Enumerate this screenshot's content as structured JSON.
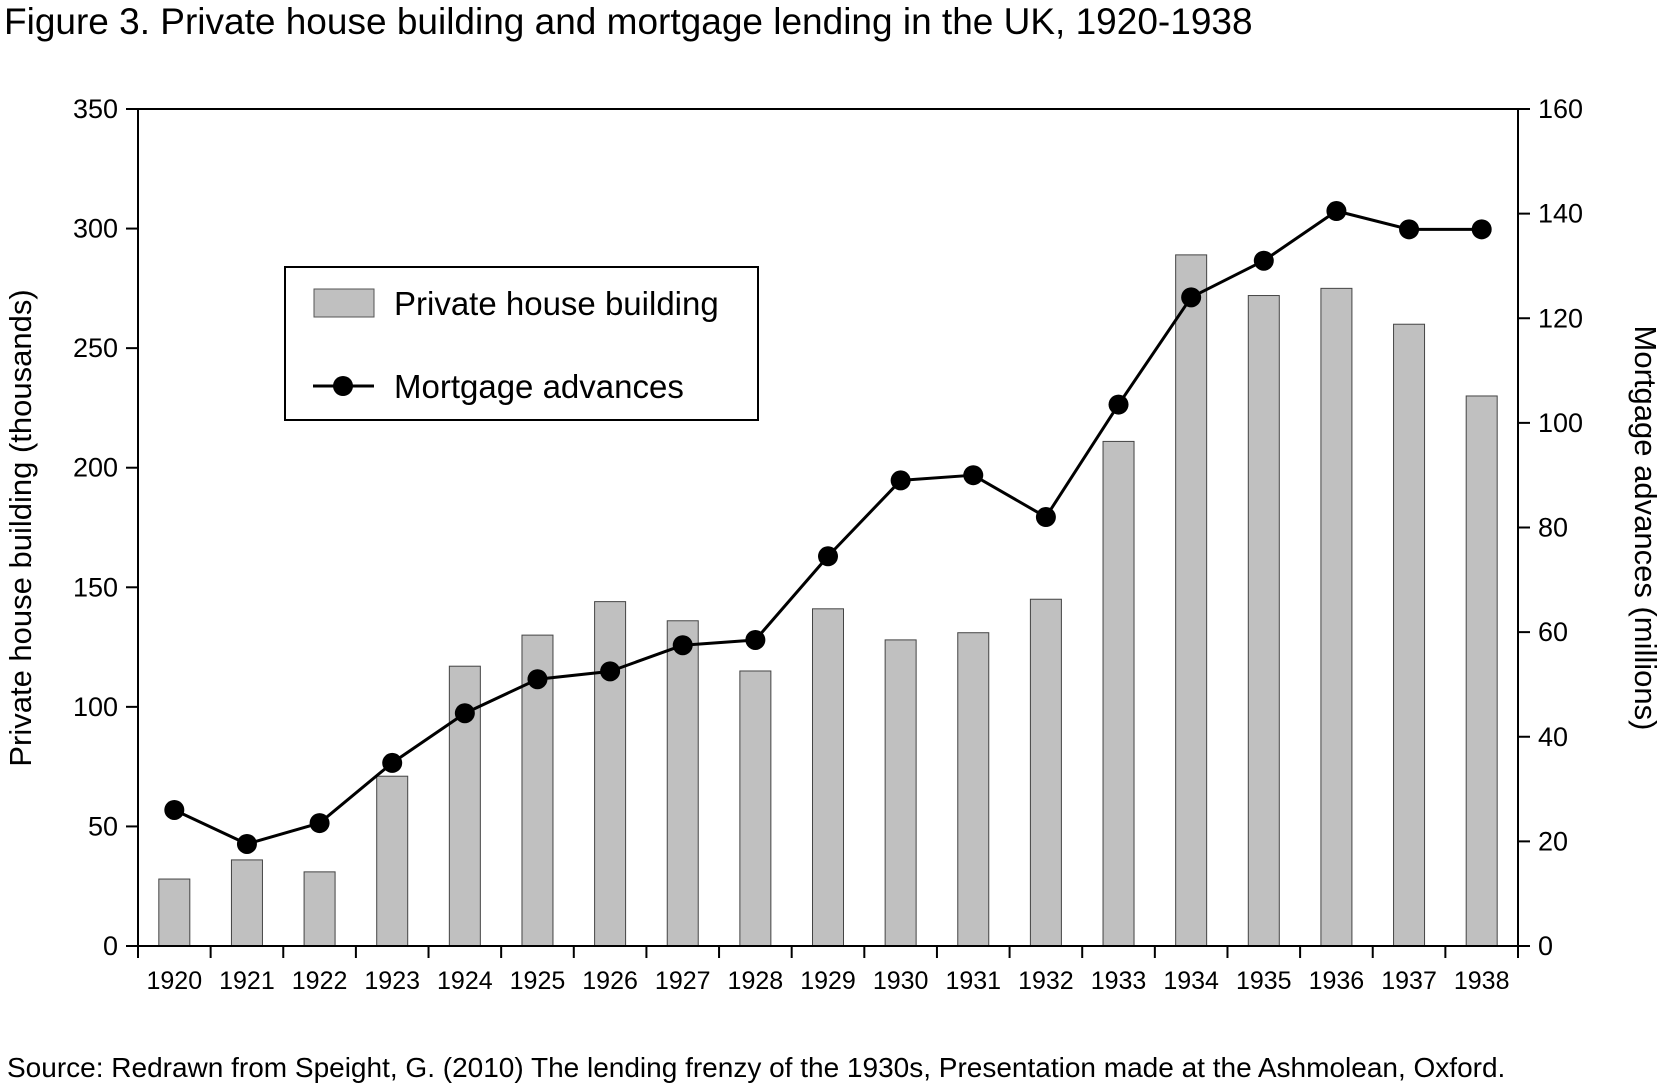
{
  "chart_data": {
    "type": "bar",
    "title": "Figure 3.  Private house building and mortgage lending in the UK, 1920-1938",
    "source": "Source: Redrawn from Speight, G. (2010) The lending frenzy of the 1930s, Presentation made at the Ashmolean, Oxford.",
    "categories": [
      "1920",
      "1921",
      "1922",
      "1923",
      "1924",
      "1925",
      "1926",
      "1927",
      "1928",
      "1929",
      "1930",
      "1931",
      "1932",
      "1933",
      "1934",
      "1935",
      "1936",
      "1937",
      "1938"
    ],
    "series": [
      {
        "name": "Private house building",
        "kind": "bar",
        "axis": "left",
        "color": "#c0c0c0",
        "values": [
          28,
          36,
          31,
          71,
          117,
          130,
          144,
          136,
          115,
          141,
          128,
          131,
          145,
          211,
          289,
          272,
          275,
          260,
          230
        ]
      },
      {
        "name": "Mortgage advances",
        "kind": "line",
        "axis": "right",
        "color": "#000000",
        "values": [
          26,
          19.5,
          23.5,
          35,
          44.5,
          51,
          52.5,
          57.5,
          58.5,
          74.5,
          89,
          90,
          82,
          103.5,
          124,
          131,
          140.5,
          137,
          137
        ]
      }
    ],
    "ylabel_left": "Private house building (thousands)",
    "ylabel_right": "Mortgage advances (millions)",
    "ylim_left": [
      0,
      350
    ],
    "yticks_left": [
      "0",
      "50",
      "100",
      "150",
      "200",
      "250",
      "300",
      "350"
    ],
    "ylim_right": [
      0,
      160
    ],
    "yticks_right": [
      "0",
      "20",
      "40",
      "60",
      "80",
      "100",
      "120",
      "140",
      "160"
    ],
    "grid": false,
    "legend_position": "top-left"
  }
}
